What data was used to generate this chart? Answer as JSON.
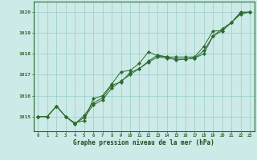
{
  "x": [
    0,
    1,
    2,
    3,
    4,
    5,
    6,
    7,
    8,
    9,
    10,
    11,
    12,
    13,
    14,
    15,
    16,
    17,
    18,
    19,
    20,
    21,
    22,
    23
  ],
  "series1": [
    1015.0,
    1015.0,
    1015.5,
    1015.0,
    1014.7,
    1014.8,
    1015.85,
    1016.0,
    1016.55,
    1017.15,
    1017.2,
    1017.55,
    1018.1,
    1017.9,
    1017.85,
    1017.85,
    1017.85,
    1017.85,
    1018.35,
    1019.1,
    1019.1,
    1019.5,
    1019.9,
    1020.0
  ],
  "series2": [
    1015.0,
    1015.0,
    1015.5,
    1015.0,
    1014.65,
    1015.05,
    1015.65,
    1015.9,
    1016.5,
    1016.65,
    1017.1,
    1017.3,
    1017.6,
    1017.85,
    1017.8,
    1017.75,
    1017.75,
    1017.8,
    1018.0,
    1018.85,
    1019.2,
    1019.5,
    1020.0,
    1020.0
  ],
  "series3": [
    1015.0,
    1015.0,
    1015.5,
    1015.0,
    1014.65,
    1014.95,
    1015.55,
    1015.8,
    1016.35,
    1016.7,
    1017.0,
    1017.3,
    1017.65,
    1017.95,
    1017.85,
    1017.7,
    1017.75,
    1017.8,
    1018.15,
    1018.85,
    1019.1,
    1019.5,
    1019.95,
    1020.0
  ],
  "line_color": "#2d6a2d",
  "bg_color": "#cceae7",
  "grid_color": "#99ccc8",
  "xlabel": "Graphe pression niveau de la mer (hPa)",
  "xlabel_color": "#1a4a1a",
  "ylabel_ticks": [
    1015,
    1016,
    1017,
    1018,
    1019,
    1020
  ],
  "xlim": [
    -0.5,
    23.5
  ],
  "ylim": [
    1014.3,
    1020.5
  ],
  "xticks": [
    0,
    1,
    2,
    3,
    4,
    5,
    6,
    7,
    8,
    9,
    10,
    11,
    12,
    13,
    14,
    15,
    16,
    17,
    18,
    19,
    20,
    21,
    22,
    23
  ]
}
